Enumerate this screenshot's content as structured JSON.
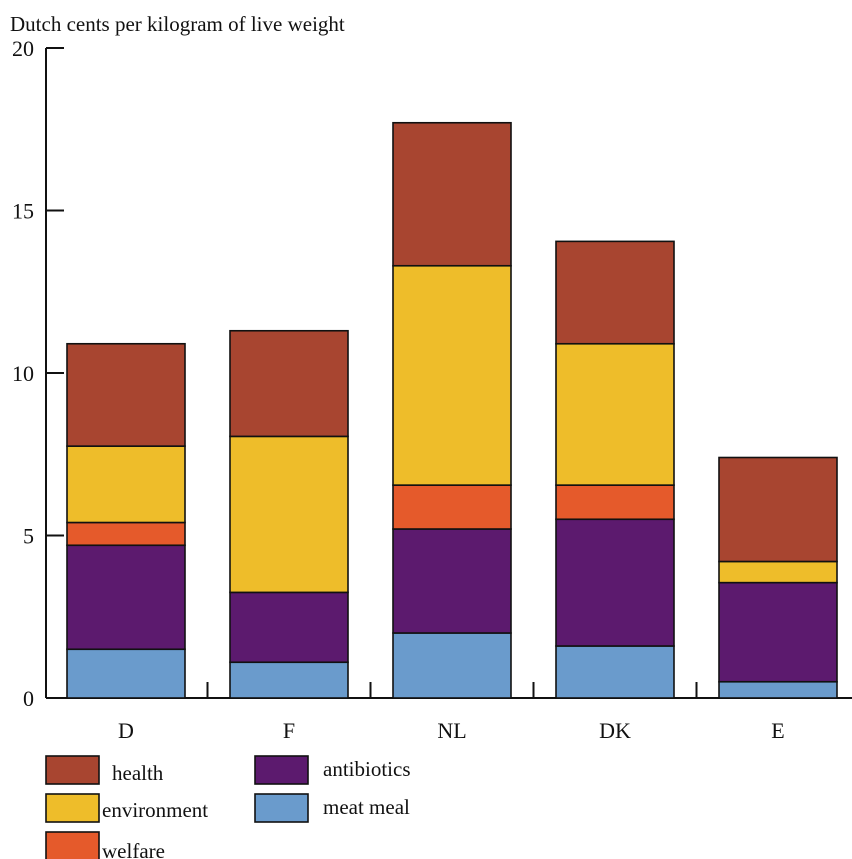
{
  "chart_data": {
    "type": "bar",
    "stacked": true,
    "title": "",
    "ylabel": "Dutch cents per kilogram of live weight",
    "xlabel": "",
    "ylim": [
      0,
      20
    ],
    "yticks": [
      0,
      5,
      10,
      15,
      20
    ],
    "categories": [
      "D",
      "F",
      "NL",
      "DK",
      "E"
    ],
    "series": [
      {
        "name": "meat meal",
        "color": "#6a9bcc",
        "values": [
          1.5,
          1.1,
          2.0,
          1.6,
          0.5
        ]
      },
      {
        "name": "antibiotics",
        "color": "#5c1a6e",
        "values": [
          3.2,
          2.15,
          3.2,
          3.9,
          3.05
        ]
      },
      {
        "name": "welfare",
        "color": "#e55a2b",
        "values": [
          0.7,
          0.0,
          1.35,
          1.05,
          0.0
        ]
      },
      {
        "name": "environment",
        "color": "#eebd2a",
        "values": [
          2.35,
          4.8,
          6.75,
          4.35,
          0.65
        ]
      },
      {
        "name": "health",
        "color": "#a84530",
        "values": [
          3.15,
          3.25,
          4.4,
          3.15,
          3.2
        ]
      }
    ],
    "legend_order": [
      "health",
      "environment",
      "welfare",
      "antibiotics",
      "meat meal"
    ],
    "legend_position": "bottom-left",
    "grid": false
  }
}
